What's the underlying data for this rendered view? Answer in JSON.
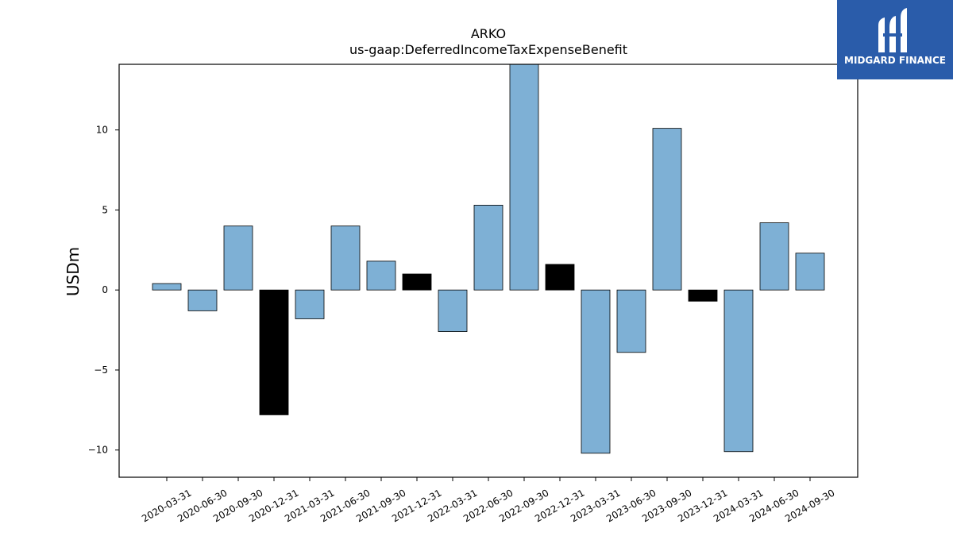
{
  "brand": {
    "name": "MIDGARD FINANCE",
    "color": "#2a5caa"
  },
  "chart_data": {
    "type": "bar",
    "title": "ARKO",
    "subtitle": "us-gaap:DeferredIncomeTaxExpenseBenefit",
    "xlabel": "",
    "ylabel": "USDm",
    "ylim": [
      -11.7,
      14.1
    ],
    "yticks": [
      -10,
      -5,
      0,
      5,
      10
    ],
    "ytick_labels": [
      "−10",
      "−5",
      "0",
      "5",
      "10"
    ],
    "grid": false,
    "categories": [
      "2020-03-31",
      "2020-06-30",
      "2020-09-30",
      "2020-12-31",
      "2021-03-31",
      "2021-06-30",
      "2021-09-30",
      "2021-12-31",
      "2022-03-31",
      "2022-06-30",
      "2022-09-30",
      "2022-12-31",
      "2023-03-31",
      "2023-06-30",
      "2023-09-30",
      "2023-12-31",
      "2024-03-31",
      "2024-06-30",
      "2024-09-30"
    ],
    "values": [
      0.4,
      -1.3,
      4.0,
      -7.8,
      -1.8,
      4.0,
      1.8,
      1.0,
      -2.6,
      5.3,
      14.5,
      1.6,
      -10.2,
      -3.9,
      10.1,
      -0.7,
      -10.1,
      4.2,
      2.3
    ],
    "colors": [
      "#7eb0d5",
      "#7eb0d5",
      "#7eb0d5",
      "#000000",
      "#7eb0d5",
      "#7eb0d5",
      "#7eb0d5",
      "#000000",
      "#7eb0d5",
      "#7eb0d5",
      "#7eb0d5",
      "#000000",
      "#7eb0d5",
      "#7eb0d5",
      "#7eb0d5",
      "#000000",
      "#7eb0d5",
      "#7eb0d5",
      "#7eb0d5"
    ]
  }
}
